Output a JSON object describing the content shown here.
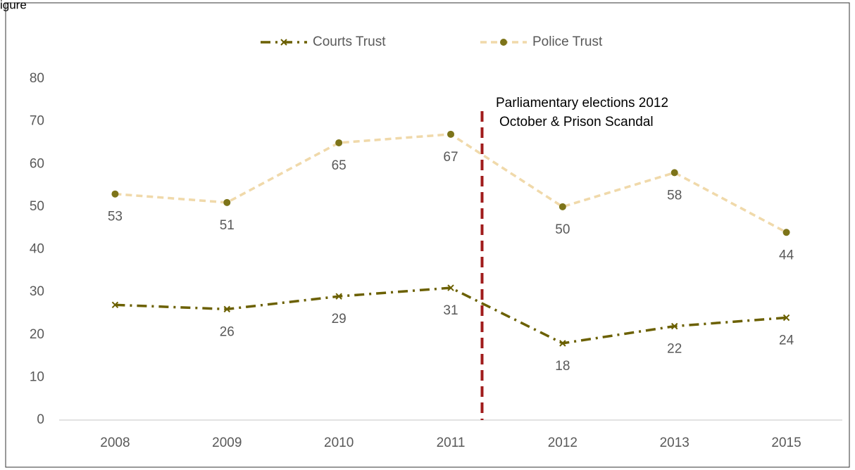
{
  "caption": "igure",
  "chart_data": {
    "type": "line",
    "categories": [
      "2008",
      "2009",
      "2010",
      "2011",
      "2012",
      "2013",
      "2015"
    ],
    "series": [
      {
        "name": "Courts Trust",
        "color": "#6b6000",
        "marker": "x",
        "dash": "dash-dot",
        "values": [
          27,
          26,
          29,
          31,
          18,
          22,
          24
        ],
        "value_labels": [
          null,
          "26",
          "29",
          "31",
          "18",
          "22",
          "24"
        ]
      },
      {
        "name": "Police Trust",
        "color": "#f0d9aa",
        "marker": "circle",
        "marker_color": "#7d7419",
        "dash": "dashed",
        "values": [
          53,
          51,
          65,
          67,
          50,
          58,
          44
        ]
      }
    ],
    "ylim": [
      0,
      80
    ],
    "yticks": [
      0,
      10,
      20,
      30,
      40,
      50,
      60,
      70,
      80
    ],
    "grid": false,
    "legend": "top",
    "annotation": {
      "lines": [
        "Parliamentary elections 2012",
        "October & Prison Scandal"
      ],
      "color": "#a01c1c"
    }
  }
}
